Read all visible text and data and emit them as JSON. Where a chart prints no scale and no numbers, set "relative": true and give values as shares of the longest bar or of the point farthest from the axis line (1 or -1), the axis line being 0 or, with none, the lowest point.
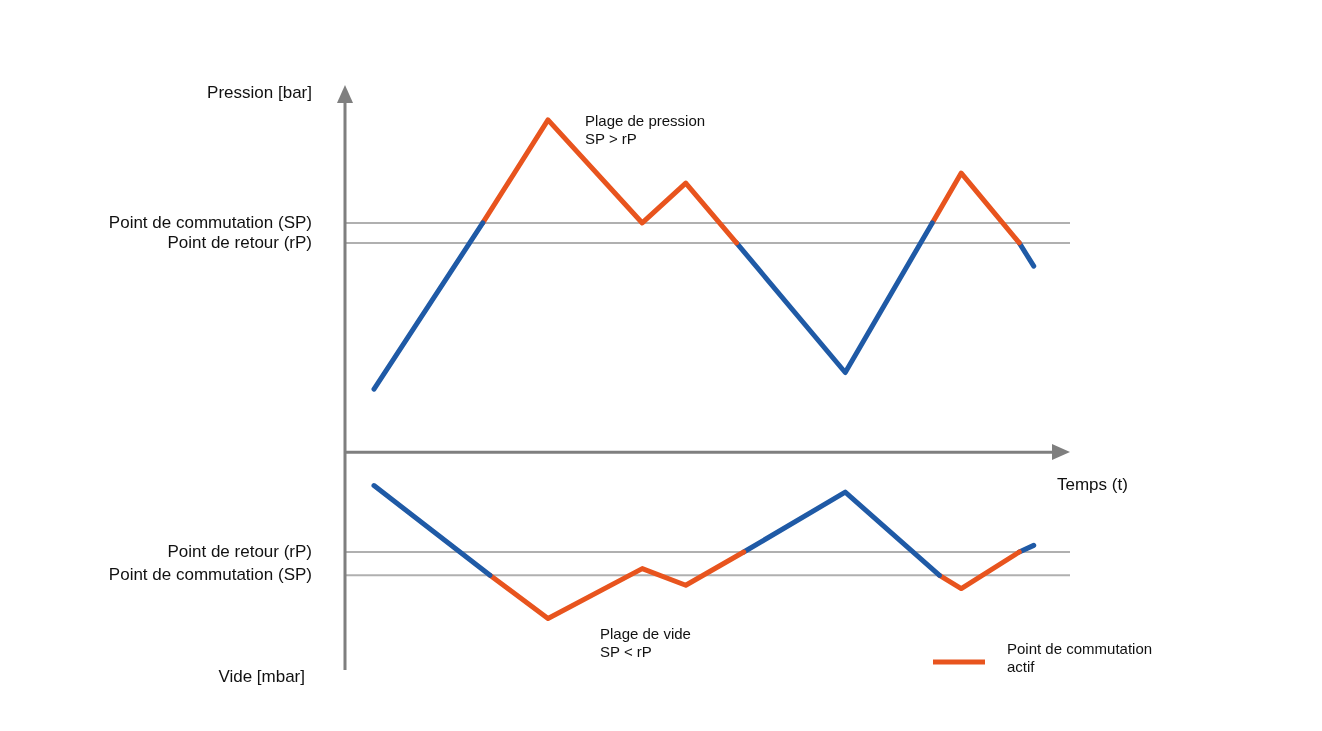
{
  "chart_data": {
    "type": "line",
    "relative": true,
    "ylabel": "Pression [bar]",
    "xlabel": "Temps (t)",
    "legend": "bottom right",
    "marker": "none",
    "line_style": "solid",
    "categories": [
      null,
      null,
      null,
      null,
      null,
      null,
      null,
      null,
      null,
      null,
      null,
      null,
      null,
      null,
      null,
      null,
      null,
      null,
      null,
      null,
      null,
      null,
      null,
      null,
      null,
      null,
      null,
      null,
      null,
      null,
      null,
      null,
      null,
      null,
      null,
      null,
      null,
      null,
      null,
      null,
      null,
      null,
      null,
      null,
      null,
      null,
      null,
      null,
      null,
      null,
      null,
      null,
      null,
      null,
      null,
      null,
      null,
      null,
      null,
      null,
      null,
      null,
      null,
      null,
      null,
      null,
      null,
      null,
      null,
      null,
      null,
      null,
      null,
      null,
      null,
      null,
      null,
      null,
      null,
      null,
      null,
      null,
      null,
      null,
      null,
      null,
      null,
      null,
      null,
      null,
      null,
      null,
      null,
      null,
      null,
      null,
      null,
      null,
      null,
      null,
      null
    ],
    "series": [
      {
        "color": "#1f5aa6",
        "values": [
          null,
          null,
          null,
          null,
          0.19,
          null,
          null,
          null,
          null,
          null,
          null,
          null,
          null,
          null,
          null,
          null,
          null,
          null,
          null,
          0.69,
          null,
          null,
          null,
          null,
          null,
          null,
          null,
          null,
          null,
          null,
          null,
          null,
          null,
          null,
          null,
          null,
          null,
          null,
          null,
          null,
          null,
          null,
          null,
          null,
          null,
          null,
          null,
          null,
          null,
          null,
          null,
          null,
          null,
          null,
          null,
          null,
          null,
          null,
          null,
          null,
          null,
          null,
          null,
          null,
          null,
          null,
          null,
          null,
          null,
          null,
          null,
          null,
          null,
          null,
          null,
          null,
          null,
          null,
          null,
          null,
          null,
          null,
          null,
          null,
          null,
          null,
          null,
          null,
          null,
          null,
          null,
          null,
          null,
          null,
          null,
          null,
          null,
          null,
          null,
          null,
          null
        ]
      },
      {
        "name": "Point de commutation actif",
        "color": "#e8541e",
        "values": [
          null,
          null,
          null,
          null,
          null,
          null,
          null,
          null,
          null,
          null,
          null,
          null,
          null,
          null,
          null,
          null,
          null,
          null,
          null,
          0.69,
          null,
          null,
          null,
          null,
          null,
          null,
          null,
          null,
          1.0,
          null,
          null,
          null,
          null,
          null,
          null,
          null,
          null,
          null,
          null,
          null,
          null,
          0.69,
          null,
          null,
          null,
          null,
          null,
          0.81,
          null,
          null,
          null,
          null,
          null,
          null,
          0.63,
          null,
          null,
          null,
          null,
          null,
          null,
          null,
          null,
          null,
          null,
          null,
          null,
          null,
          null,
          null,
          null,
          null,
          null,
          null,
          null,
          null,
          null,
          null,
          null,
          null,
          null,
          null,
          null,
          null,
          null,
          null,
          null,
          null,
          null,
          null,
          null,
          null,
          null,
          null,
          null,
          null,
          null,
          null,
          null,
          null,
          null
        ]
      },
      {
        "color": "#1f5aa6",
        "values": [
          null,
          null,
          null,
          null,
          null,
          null,
          null,
          null,
          null,
          null,
          null,
          null,
          null,
          null,
          null,
          null,
          null,
          null,
          null,
          null,
          null,
          null,
          null,
          null,
          null,
          null,
          null,
          null,
          null,
          null,
          null,
          null,
          null,
          null,
          null,
          null,
          null,
          null,
          null,
          null,
          null,
          null,
          null,
          null,
          null,
          null,
          null,
          null,
          null,
          null,
          null,
          null,
          null,
          null,
          0.63,
          null,
          null,
          null,
          null,
          null,
          null,
          null,
          null,
          null,
          null,
          null,
          null,
          null,
          null,
          0.24,
          null,
          null,
          null,
          null,
          null,
          null,
          null,
          null,
          null,
          null,
          null,
          0.69,
          null,
          null,
          null,
          null,
          null,
          null,
          null,
          null,
          null,
          null,
          null,
          null,
          null,
          null,
          null,
          null,
          null,
          null,
          null
        ]
      },
      {
        "color": "#e8541e",
        "values": [
          null,
          null,
          null,
          null,
          null,
          null,
          null,
          null,
          null,
          null,
          null,
          null,
          null,
          null,
          null,
          null,
          null,
          null,
          null,
          null,
          null,
          null,
          null,
          null,
          null,
          null,
          null,
          null,
          null,
          null,
          null,
          null,
          null,
          null,
          null,
          null,
          null,
          null,
          null,
          null,
          null,
          null,
          null,
          null,
          null,
          null,
          null,
          null,
          null,
          null,
          null,
          null,
          null,
          null,
          null,
          null,
          null,
          null,
          null,
          null,
          null,
          null,
          null,
          null,
          null,
          null,
          null,
          null,
          null,
          null,
          null,
          null,
          null,
          null,
          null,
          null,
          null,
          null,
          null,
          null,
          null,
          0.69,
          null,
          null,
          null,
          0.84,
          null,
          null,
          null,
          null,
          null,
          null,
          null,
          0.63,
          null,
          null,
          null,
          null,
          null,
          null,
          null
        ]
      },
      {
        "color": "#1f5aa6",
        "values": [
          null,
          null,
          null,
          null,
          null,
          null,
          null,
          null,
          null,
          null,
          null,
          null,
          null,
          null,
          null,
          null,
          null,
          null,
          null,
          null,
          null,
          null,
          null,
          null,
          null,
          null,
          null,
          null,
          null,
          null,
          null,
          null,
          null,
          null,
          null,
          null,
          null,
          null,
          null,
          null,
          null,
          null,
          null,
          null,
          null,
          null,
          null,
          null,
          null,
          null,
          null,
          null,
          null,
          null,
          null,
          null,
          null,
          null,
          null,
          null,
          null,
          null,
          null,
          null,
          null,
          null,
          null,
          null,
          null,
          null,
          null,
          null,
          null,
          null,
          null,
          null,
          null,
          null,
          null,
          null,
          null,
          null,
          null,
          null,
          null,
          null,
          null,
          null,
          null,
          null,
          null,
          null,
          null,
          0.63,
          null,
          0.56,
          null,
          null,
          null,
          null,
          null
        ]
      },
      {
        "color": "#1f5aa6",
        "values": [
          null,
          null,
          null,
          null,
          -0.1,
          null,
          null,
          null,
          null,
          null,
          null,
          null,
          null,
          null,
          null,
          null,
          null,
          null,
          null,
          null,
          -0.37,
          null,
          null,
          null,
          null,
          null,
          null,
          null,
          null,
          null,
          null,
          null,
          null,
          null,
          null,
          null,
          null,
          null,
          null,
          null,
          null,
          null,
          null,
          null,
          null,
          null,
          null,
          null,
          null,
          null,
          null,
          null,
          null,
          null,
          null,
          null,
          null,
          null,
          null,
          null,
          null,
          null,
          null,
          null,
          null,
          null,
          null,
          null,
          null,
          null,
          null,
          null,
          null,
          null,
          null,
          null,
          null,
          null,
          null,
          null,
          null,
          null,
          null,
          null,
          null,
          null,
          null,
          null,
          null,
          null,
          null,
          null,
          null,
          null,
          null,
          null,
          null,
          null,
          null,
          null,
          null
        ]
      },
      {
        "color": "#e8541e",
        "values": [
          null,
          null,
          null,
          null,
          null,
          null,
          null,
          null,
          null,
          null,
          null,
          null,
          null,
          null,
          null,
          null,
          null,
          null,
          null,
          null,
          -0.37,
          null,
          null,
          null,
          null,
          null,
          null,
          null,
          -0.5,
          null,
          null,
          null,
          null,
          null,
          null,
          null,
          null,
          null,
          null,
          null,
          null,
          -0.35,
          null,
          null,
          null,
          null,
          null,
          -0.4,
          null,
          null,
          null,
          null,
          null,
          null,
          null,
          -0.3,
          null,
          null,
          null,
          null,
          null,
          null,
          null,
          null,
          null,
          null,
          null,
          null,
          null,
          null,
          null,
          null,
          null,
          null,
          null,
          null,
          null,
          null,
          null,
          null,
          null,
          null,
          null,
          null,
          null,
          null,
          null,
          null,
          null,
          null,
          null,
          null,
          null,
          null,
          null,
          null,
          null,
          null,
          null,
          null,
          null
        ]
      },
      {
        "color": "#1f5aa6",
        "values": [
          null,
          null,
          null,
          null,
          null,
          null,
          null,
          null,
          null,
          null,
          null,
          null,
          null,
          null,
          null,
          null,
          null,
          null,
          null,
          null,
          null,
          null,
          null,
          null,
          null,
          null,
          null,
          null,
          null,
          null,
          null,
          null,
          null,
          null,
          null,
          null,
          null,
          null,
          null,
          null,
          null,
          null,
          null,
          null,
          null,
          null,
          null,
          null,
          null,
          null,
          null,
          null,
          null,
          null,
          null,
          -0.3,
          null,
          null,
          null,
          null,
          null,
          null,
          null,
          null,
          null,
          null,
          null,
          null,
          null,
          -0.12,
          null,
          null,
          null,
          null,
          null,
          null,
          null,
          null,
          null,
          null,
          null,
          null,
          -0.37,
          null,
          null,
          null,
          null,
          null,
          null,
          null,
          null,
          null,
          null,
          null,
          null,
          null,
          null,
          null,
          null,
          null,
          null
        ]
      },
      {
        "color": "#e8541e",
        "values": [
          null,
          null,
          null,
          null,
          null,
          null,
          null,
          null,
          null,
          null,
          null,
          null,
          null,
          null,
          null,
          null,
          null,
          null,
          null,
          null,
          null,
          null,
          null,
          null,
          null,
          null,
          null,
          null,
          null,
          null,
          null,
          null,
          null,
          null,
          null,
          null,
          null,
          null,
          null,
          null,
          null,
          null,
          null,
          null,
          null,
          null,
          null,
          null,
          null,
          null,
          null,
          null,
          null,
          null,
          null,
          null,
          null,
          null,
          null,
          null,
          null,
          null,
          null,
          null,
          null,
          null,
          null,
          null,
          null,
          null,
          null,
          null,
          null,
          null,
          null,
          null,
          null,
          null,
          null,
          null,
          null,
          null,
          -0.37,
          null,
          null,
          -0.41,
          null,
          null,
          null,
          null,
          null,
          null,
          null,
          -0.3,
          null,
          null,
          null,
          null,
          null,
          null,
          null
        ]
      },
      {
        "color": "#1f5aa6",
        "values": [
          null,
          null,
          null,
          null,
          null,
          null,
          null,
          null,
          null,
          null,
          null,
          null,
          null,
          null,
          null,
          null,
          null,
          null,
          null,
          null,
          null,
          null,
          null,
          null,
          null,
          null,
          null,
          null,
          null,
          null,
          null,
          null,
          null,
          null,
          null,
          null,
          null,
          null,
          null,
          null,
          null,
          null,
          null,
          null,
          null,
          null,
          null,
          null,
          null,
          null,
          null,
          null,
          null,
          null,
          null,
          null,
          null,
          null,
          null,
          null,
          null,
          null,
          null,
          null,
          null,
          null,
          null,
          null,
          null,
          null,
          null,
          null,
          null,
          null,
          null,
          null,
          null,
          null,
          null,
          null,
          null,
          null,
          null,
          null,
          null,
          null,
          null,
          null,
          null,
          null,
          null,
          null,
          null,
          -0.3,
          null,
          -0.28,
          null,
          null,
          null,
          null,
          null
        ]
      }
    ],
    "ref_lines": [
      {
        "axis": "y",
        "value": 0.69,
        "label": "Point de commutation (SP)",
        "color": "#b0b0b0"
      },
      {
        "axis": "y",
        "value": 0.63,
        "label": "Point de retour (rP)",
        "color": "#b0b0b0"
      },
      {
        "axis": "y",
        "value": -0.3,
        "label": "Point de retour (rP)",
        "color": "#b0b0b0"
      },
      {
        "axis": "y",
        "value": -0.37,
        "label": "Point de commutation (SP)",
        "color": "#b0b0b0"
      }
    ],
    "annotations": [
      "Plage de pression\nSP > rP",
      "Plage de vide\nSP < rP",
      "Vide [mbar]"
    ]
  }
}
